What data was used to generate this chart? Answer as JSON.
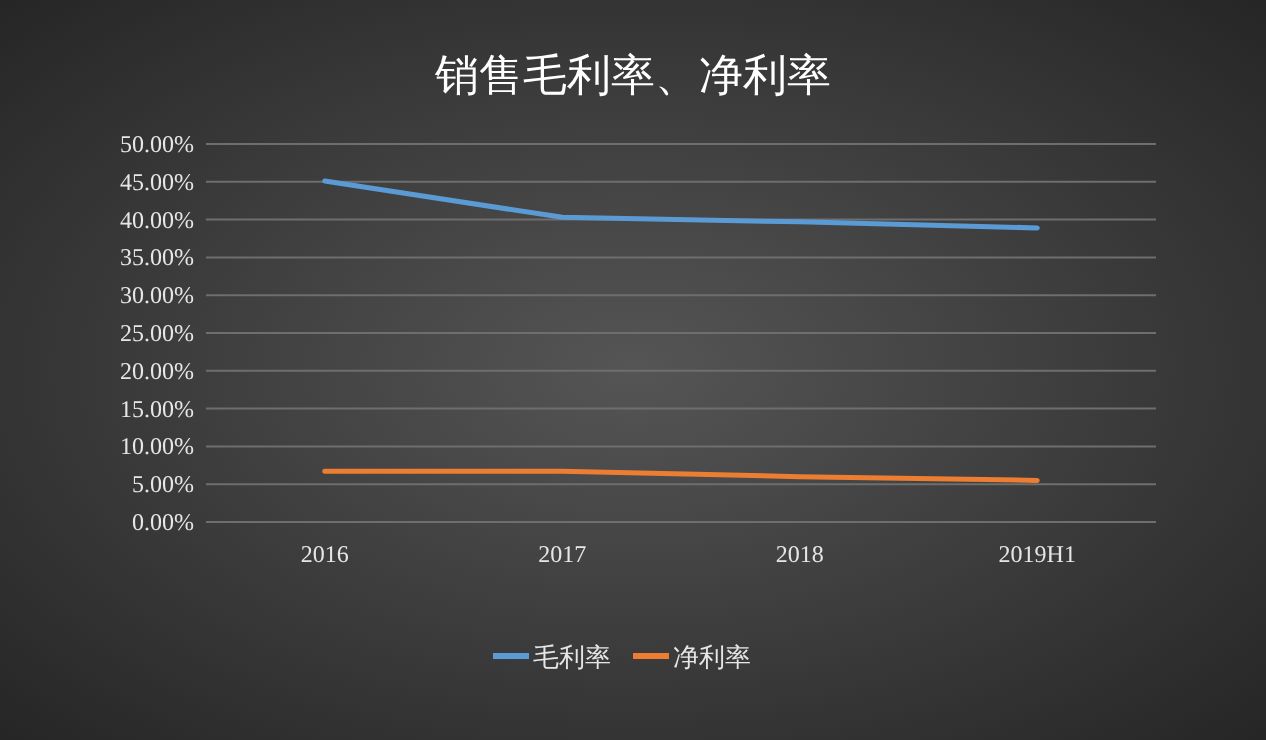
{
  "chart_data": {
    "type": "line",
    "title": "销售毛利率、净利率",
    "categories": [
      "2016",
      "2017",
      "2018",
      "2019H1"
    ],
    "series": [
      {
        "name": "毛利率",
        "color": "#5b9bd5",
        "values": [
          45.1,
          40.3,
          39.7,
          38.9
        ]
      },
      {
        "name": "净利率",
        "color": "#ed7d31",
        "values": [
          6.7,
          6.7,
          6.0,
          5.5
        ]
      }
    ],
    "ylim": [
      0,
      50
    ],
    "yticks": [
      {
        "value": 0,
        "label": "0.00%"
      },
      {
        "value": 5,
        "label": "5.00%"
      },
      {
        "value": 10,
        "label": "10.00%"
      },
      {
        "value": 15,
        "label": "15.00%"
      },
      {
        "value": 20,
        "label": "20.00%"
      },
      {
        "value": 25,
        "label": "25.00%"
      },
      {
        "value": 30,
        "label": "30.00%"
      },
      {
        "value": 35,
        "label": "35.00%"
      },
      {
        "value": 40,
        "label": "40.00%"
      },
      {
        "value": 45,
        "label": "45.00%"
      },
      {
        "value": 50,
        "label": "50.00%"
      }
    ],
    "grid": "y",
    "legend": "bottom",
    "marker": "none",
    "line_style": "solid"
  }
}
